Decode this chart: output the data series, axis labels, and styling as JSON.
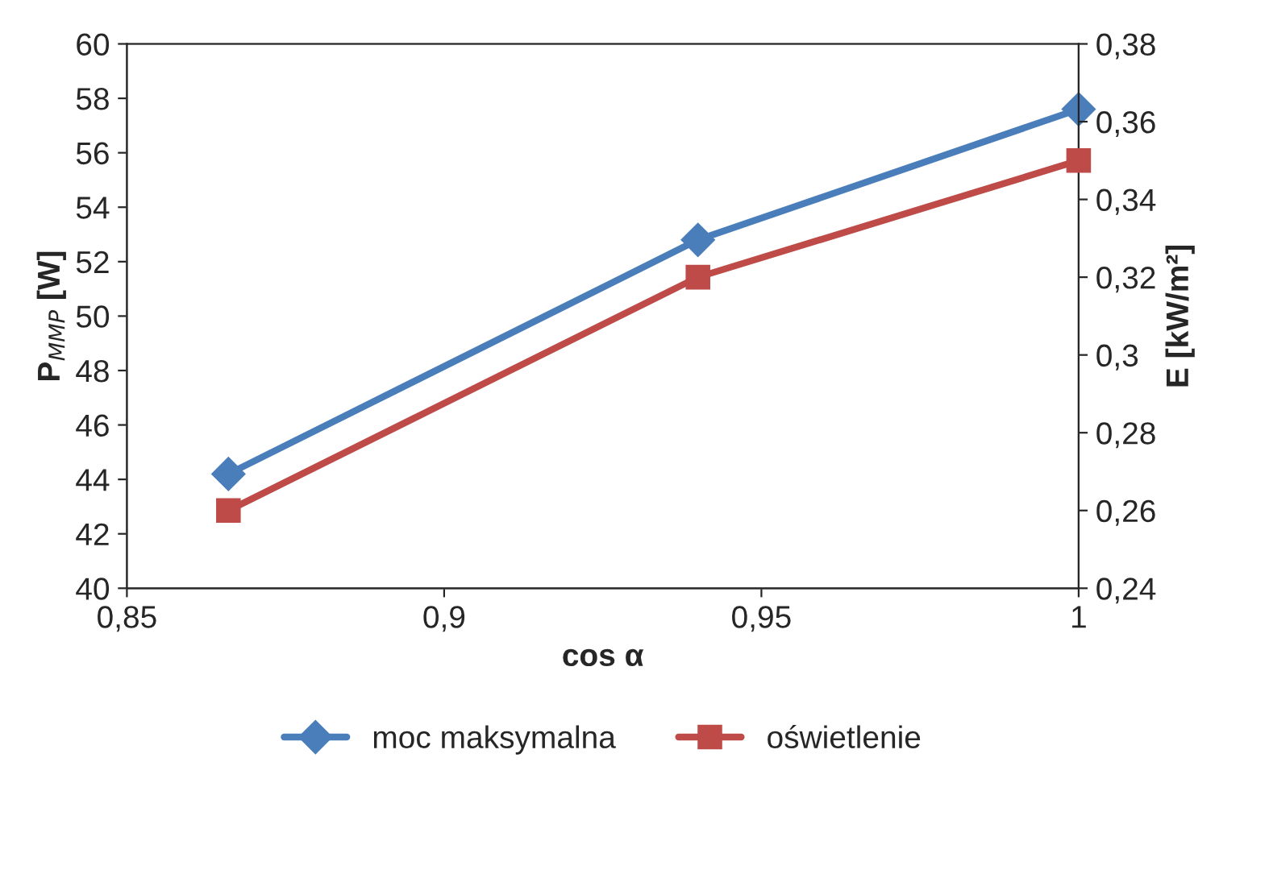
{
  "chart_data": {
    "type": "line",
    "xlabel": "cos α",
    "ylabel": "P$_{MMP}$ [W]",
    "y2label": "E [kW/m²]",
    "x": [
      0.866,
      0.94,
      1.0
    ],
    "series": [
      {
        "name": "moc maksymalna",
        "color": "#4a7ebb",
        "values": [
          44.2,
          52.8,
          57.6
        ],
        "marker": "diamond"
      },
      {
        "name": "oświetlenie",
        "color": "#be4b48",
        "values": [
          0.26,
          0.32,
          0.35
        ],
        "axis": "y2",
        "marker": "square"
      }
    ],
    "xlim": [
      0.85,
      1.0
    ],
    "xticks": [
      {
        "value": 0.85,
        "label": "0,85"
      },
      {
        "value": 0.9,
        "label": "0,9"
      },
      {
        "value": 0.95,
        "label": "0,95"
      },
      {
        "value": 1.0,
        "label": "1"
      }
    ],
    "ylim": [
      40,
      60
    ],
    "yticks": [
      40,
      42,
      44,
      46,
      48,
      50,
      52,
      54,
      56,
      58,
      60
    ],
    "y2lim": [
      0.24,
      0.38
    ],
    "y2ticks": [
      {
        "value": 0.24,
        "label": "0,24"
      },
      {
        "value": 0.26,
        "label": "0,26"
      },
      {
        "value": 0.28,
        "label": "0,28"
      },
      {
        "value": 0.3,
        "label": "0,3"
      },
      {
        "value": 0.32,
        "label": "0,32"
      },
      {
        "value": 0.34,
        "label": "0,34"
      },
      {
        "value": 0.36,
        "label": "0,36"
      },
      {
        "value": 0.38,
        "label": "0,38"
      }
    ],
    "grid": false,
    "legend": "bottom",
    "line_style": "solid"
  }
}
